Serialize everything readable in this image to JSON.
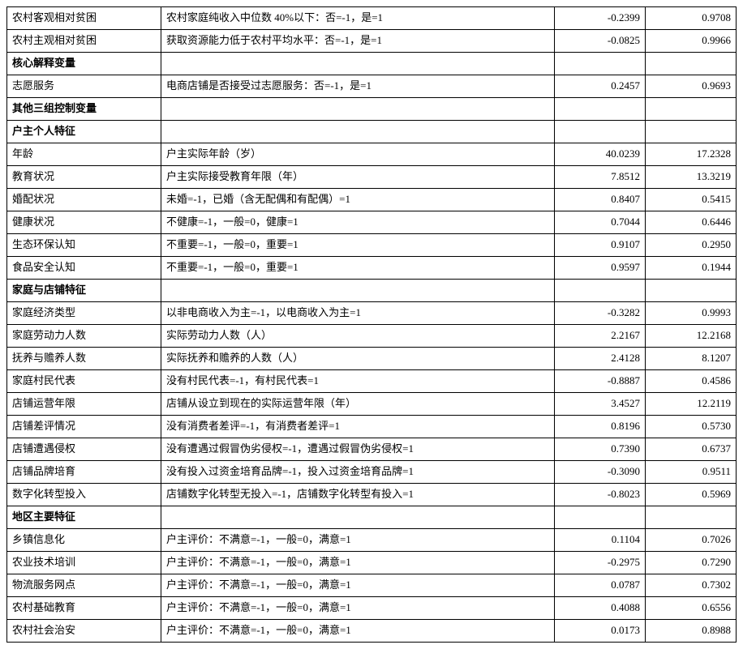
{
  "rows": [
    {
      "type": "data",
      "name": "农村客观相对贫困",
      "desc": "农村家庭纯收入中位数 40%以下：否=-1，是=1",
      "v1": "-0.2399",
      "v2": "0.9708"
    },
    {
      "type": "data",
      "name": "农村主观相对贫困",
      "desc": "获取资源能力低于农村平均水平：否=-1，是=1",
      "v1": "-0.0825",
      "v2": "0.9966"
    },
    {
      "type": "section",
      "label": "核心解释变量"
    },
    {
      "type": "data",
      "name": "志愿服务",
      "desc": "电商店铺是否接受过志愿服务：否=-1，是=1",
      "v1": "0.2457",
      "v2": "0.9693"
    },
    {
      "type": "section",
      "label": "其他三组控制变量"
    },
    {
      "type": "section",
      "label": "户主个人特征"
    },
    {
      "type": "data",
      "name": "年龄",
      "desc": "户主实际年龄（岁）",
      "v1": "40.0239",
      "v2": "17.2328"
    },
    {
      "type": "data",
      "name": "教育状况",
      "desc": "户主实际接受教育年限（年）",
      "v1": "7.8512",
      "v2": "13.3219"
    },
    {
      "type": "data",
      "name": "婚配状况",
      "desc": "未婚=-1，已婚（含无配偶和有配偶）=1",
      "v1": "0.8407",
      "v2": "0.5415"
    },
    {
      "type": "data",
      "name": "健康状况",
      "desc": "不健康=-1，一般=0，健康=1",
      "v1": "0.7044",
      "v2": "0.6446"
    },
    {
      "type": "data",
      "name": "生态环保认知",
      "desc": "不重要=-1，一般=0，重要=1",
      "v1": "0.9107",
      "v2": "0.2950"
    },
    {
      "type": "data",
      "name": "食品安全认知",
      "desc": "不重要=-1，一般=0，重要=1",
      "v1": "0.9597",
      "v2": "0.1944"
    },
    {
      "type": "section",
      "label": "家庭与店铺特征"
    },
    {
      "type": "data",
      "name": "家庭经济类型",
      "desc": "以非电商收入为主=-1，以电商收入为主=1",
      "v1": "-0.3282",
      "v2": "0.9993"
    },
    {
      "type": "data",
      "name": "家庭劳动力人数",
      "desc": "实际劳动力人数（人）",
      "v1": "2.2167",
      "v2": "12.2168"
    },
    {
      "type": "data",
      "name": "抚养与赡养人数",
      "desc": "实际抚养和赡养的人数（人）",
      "v1": "2.4128",
      "v2": "8.1207"
    },
    {
      "type": "data",
      "name": "家庭村民代表",
      "desc": "没有村民代表=-1，有村民代表=1",
      "v1": "-0.8887",
      "v2": "0.4586"
    },
    {
      "type": "data",
      "name": "店铺运营年限",
      "desc": "店铺从设立到现在的实际运营年限（年）",
      "v1": "3.4527",
      "v2": "12.2119"
    },
    {
      "type": "data",
      "name": "店铺差评情况",
      "desc": "没有消费者差评=-1，有消费者差评=1",
      "v1": "0.8196",
      "v2": "0.5730"
    },
    {
      "type": "data",
      "name": "店铺遭遇侵权",
      "desc": "没有遭遇过假冒伪劣侵权=-1，遭遇过假冒伪劣侵权=1",
      "v1": "0.7390",
      "v2": "0.6737"
    },
    {
      "type": "data",
      "name": "店铺品牌培育",
      "desc": "没有投入过资金培育品牌=-1，投入过资金培育品牌=1",
      "v1": "-0.3090",
      "v2": "0.9511"
    },
    {
      "type": "data",
      "name": "数字化转型投入",
      "desc": "店铺数字化转型无投入=-1，店铺数字化转型有投入=1",
      "v1": "-0.8023",
      "v2": "0.5969"
    },
    {
      "type": "section",
      "label": "地区主要特征"
    },
    {
      "type": "data",
      "name": "乡镇信息化",
      "desc": "户主评价：不满意=-1，一般=0，满意=1",
      "v1": "0.1104",
      "v2": "0.7026"
    },
    {
      "type": "data",
      "name": "农业技术培训",
      "desc": "户主评价：不满意=-1，一般=0，满意=1",
      "v1": "-0.2975",
      "v2": "0.7290"
    },
    {
      "type": "data",
      "name": "物流服务网点",
      "desc": "户主评价：不满意=-1，一般=0，满意=1",
      "v1": "0.0787",
      "v2": "0.7302"
    },
    {
      "type": "data",
      "name": "农村基础教育",
      "desc": "户主评价：不满意=-1，一般=0，满意=1",
      "v1": "0.4088",
      "v2": "0.6556"
    },
    {
      "type": "data",
      "name": "农村社会治安",
      "desc": "户主评价：不满意=-1，一般=0，满意=1",
      "v1": "0.0173",
      "v2": "0.8988"
    }
  ]
}
